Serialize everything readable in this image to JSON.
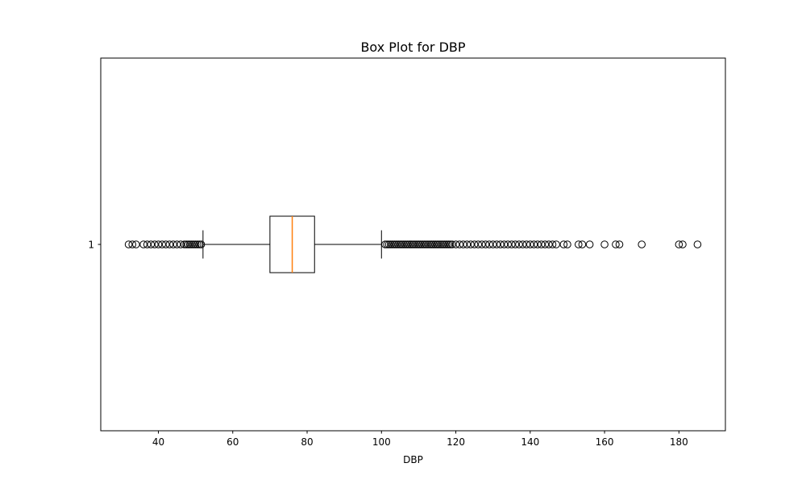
{
  "chart_data": {
    "type": "box",
    "orientation": "horizontal",
    "title": "Box Plot for DBP",
    "xlabel": "DBP",
    "ylabel": "",
    "xlim": [
      24.5,
      192.5
    ],
    "xticks": [
      40,
      60,
      80,
      100,
      120,
      140,
      160,
      180
    ],
    "yticks": [
      "1"
    ],
    "grid": false,
    "colors": {
      "box": "#000000",
      "median": "#ff7f0e",
      "outlier_edge": "#000000"
    },
    "boxes": [
      {
        "label": "1",
        "whisker_low": 52,
        "q1": 70,
        "median": 76,
        "q3": 82,
        "whisker_high": 100,
        "outliers": [
          32,
          33,
          34,
          36,
          37,
          38,
          39,
          40,
          41,
          42,
          43,
          44,
          45,
          46,
          47,
          47.5,
          48,
          48.5,
          49,
          49.5,
          50,
          50.5,
          51,
          51.5,
          101,
          101.5,
          102,
          102.5,
          103,
          103.5,
          104,
          104.5,
          105,
          105.5,
          106,
          106.5,
          107,
          107.5,
          108,
          108.5,
          109,
          109.5,
          110,
          110.5,
          111,
          111.5,
          112,
          112.5,
          113,
          113.5,
          114,
          114.5,
          115,
          115.5,
          116,
          116.5,
          117,
          117.5,
          118,
          118.5,
          119,
          120,
          121,
          122,
          123,
          124,
          125,
          126,
          127,
          128,
          129,
          130,
          131,
          132,
          133,
          134,
          135,
          136,
          137,
          138,
          139,
          140,
          141,
          142,
          143,
          144,
          145,
          146,
          147,
          149,
          150,
          153,
          154,
          156,
          160,
          163,
          164,
          170,
          180,
          181,
          185
        ]
      }
    ]
  }
}
